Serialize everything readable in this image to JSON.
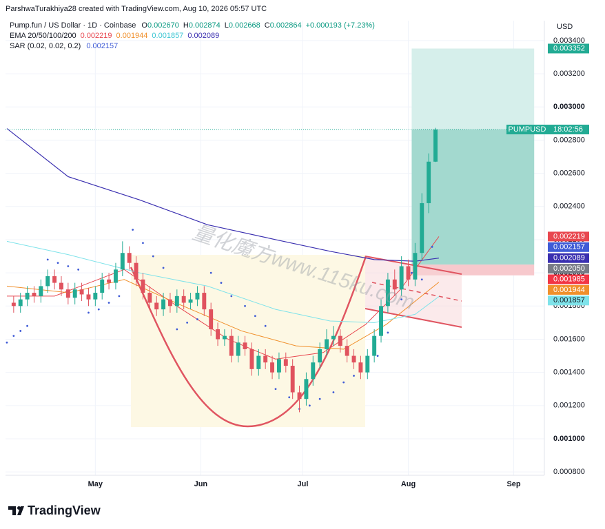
{
  "chart_data": {
    "type": "candlestick",
    "credit": "ParshwaTurakhiya28 created with TradingView.com, Aug 10, 2026 05:57 UTC",
    "symbol": "Pump.fun / US Dollar · 1D · Coinbase",
    "ohlc": [
      {
        "key": "O",
        "text": "0.002670"
      },
      {
        "key": "H",
        "text": "0.002874"
      },
      {
        "key": "L",
        "text": "0.002668"
      },
      {
        "key": "C",
        "text": "0.002864"
      }
    ],
    "change": "+0.000193 (+7.23%)",
    "ema_label": "EMA 20/50/100/200",
    "currency": "USD",
    "ticker": "PUMPUSD",
    "countdown": "18:02:56",
    "watermark": "量化魔方www.115ku.com",
    "logo": "TradingView",
    "up_color": "#22ab94",
    "down_color": "#e0525e",
    "grid": true,
    "xlim": [
      -26.4,
      132
    ],
    "xticks": [
      {
        "value": 0,
        "label": "May"
      },
      {
        "value": 31,
        "label": "Jun"
      },
      {
        "value": 61,
        "label": "Jul"
      },
      {
        "value": 92,
        "label": "Aug"
      },
      {
        "value": 123,
        "label": "Sep"
      }
    ],
    "ylim": [
      0.00078,
      0.00352
    ],
    "yticks": [
      {
        "value": 0.0008,
        "label": "0.000800"
      },
      {
        "value": 0.001,
        "label": "0.001000"
      },
      {
        "value": 0.0012,
        "label": "0.001200"
      },
      {
        "value": 0.0014,
        "label": "0.001400"
      },
      {
        "value": 0.0016,
        "label": "0.001600"
      },
      {
        "value": 0.0018,
        "label": "0.001800"
      },
      {
        "value": 0.002,
        "label": "0.002000"
      },
      {
        "value": 0.0022,
        "label": "0.002200"
      },
      {
        "value": 0.0024,
        "label": "0.002400"
      },
      {
        "value": 0.0026,
        "label": "0.002600"
      },
      {
        "value": 0.0028,
        "label": "0.002800"
      },
      {
        "value": 0.003,
        "label": "0.003000"
      },
      {
        "value": 0.0032,
        "label": "0.003200"
      },
      {
        "value": 0.0034,
        "label": "0.003400"
      }
    ],
    "candles": {
      "x": [
        -24,
        -22,
        -20,
        -18,
        -16,
        -14,
        -12,
        -10,
        -8,
        -6,
        -4,
        -2,
        0,
        2,
        4,
        6,
        8,
        10,
        12,
        14,
        16,
        18,
        20,
        22,
        24,
        26,
        28,
        30,
        32,
        34,
        36,
        38,
        40,
        42,
        44,
        46,
        48,
        50,
        52,
        54,
        56,
        58,
        60,
        62,
        64,
        66,
        68,
        70,
        72,
        74,
        76,
        78,
        80,
        82,
        84,
        86,
        88,
        90,
        92,
        94,
        96,
        98,
        100
      ],
      "open": [
        0.00182,
        0.0018,
        0.00184,
        0.00188,
        0.00186,
        0.00192,
        0.00198,
        0.00194,
        0.0019,
        0.00185,
        0.0019,
        0.00187,
        0.00184,
        0.00188,
        0.00196,
        0.00194,
        0.00202,
        0.00212,
        0.00206,
        0.00196,
        0.00188,
        0.00182,
        0.00178,
        0.00184,
        0.0018,
        0.00186,
        0.00182,
        0.00184,
        0.00188,
        0.00178,
        0.00166,
        0.0016,
        0.00162,
        0.0015,
        0.00158,
        0.00154,
        0.00142,
        0.0015,
        0.00146,
        0.0014,
        0.00148,
        0.00144,
        0.00128,
        0.00124,
        0.00136,
        0.00146,
        0.00154,
        0.0016,
        0.00162,
        0.00156,
        0.0015,
        0.00146,
        0.0014,
        0.0015,
        0.00162,
        0.0018,
        0.00196,
        0.0019,
        0.00204,
        0.00196,
        0.00212,
        0.00242,
        0.00267
      ],
      "high": [
        0.00186,
        0.00188,
        0.00192,
        0.00192,
        0.00196,
        0.00202,
        0.00202,
        0.00198,
        0.00194,
        0.00194,
        0.00194,
        0.00191,
        0.00192,
        0.002,
        0.002,
        0.00206,
        0.00219,
        0.00216,
        0.0021,
        0.002,
        0.00192,
        0.00186,
        0.00188,
        0.00188,
        0.0019,
        0.0019,
        0.00188,
        0.00192,
        0.00192,
        0.00182,
        0.0017,
        0.00166,
        0.00166,
        0.00162,
        0.00162,
        0.00158,
        0.00154,
        0.00154,
        0.0015,
        0.00152,
        0.00152,
        0.00148,
        0.00132,
        0.0014,
        0.0015,
        0.00158,
        0.00166,
        0.00168,
        0.00166,
        0.0016,
        0.00154,
        0.0015,
        0.00154,
        0.00166,
        0.00184,
        0.002,
        0.00202,
        0.0021,
        0.00208,
        0.00218,
        0.00248,
        0.00272,
        0.002874
      ],
      "low": [
        0.00176,
        0.00176,
        0.0018,
        0.00182,
        0.00182,
        0.00188,
        0.0019,
        0.00186,
        0.00181,
        0.00181,
        0.00183,
        0.0018,
        0.0018,
        0.00184,
        0.0019,
        0.0019,
        0.00198,
        0.00202,
        0.00192,
        0.00184,
        0.00178,
        0.00174,
        0.00174,
        0.00176,
        0.00176,
        0.00178,
        0.00178,
        0.0018,
        0.00174,
        0.00162,
        0.00156,
        0.00156,
        0.00146,
        0.00146,
        0.0015,
        0.00138,
        0.00138,
        0.00142,
        0.00136,
        0.00136,
        0.0014,
        0.00124,
        0.00116,
        0.0012,
        0.00132,
        0.00142,
        0.0015,
        0.00156,
        0.00152,
        0.00146,
        0.00142,
        0.00136,
        0.00136,
        0.00146,
        0.00158,
        0.00176,
        0.00186,
        0.00186,
        0.00192,
        0.00192,
        0.00208,
        0.00236,
        0.002668
      ],
      "close": [
        0.0018,
        0.00184,
        0.00188,
        0.00186,
        0.00192,
        0.00198,
        0.00194,
        0.0019,
        0.00185,
        0.0019,
        0.00187,
        0.00184,
        0.00188,
        0.00196,
        0.00194,
        0.00202,
        0.00212,
        0.00206,
        0.00196,
        0.00188,
        0.00182,
        0.00178,
        0.00184,
        0.0018,
        0.00186,
        0.00182,
        0.00184,
        0.00188,
        0.00178,
        0.00166,
        0.0016,
        0.00162,
        0.0015,
        0.00158,
        0.00154,
        0.00142,
        0.0015,
        0.00146,
        0.0014,
        0.00148,
        0.00144,
        0.00128,
        0.00124,
        0.00136,
        0.00146,
        0.00154,
        0.0016,
        0.00162,
        0.00156,
        0.0015,
        0.00146,
        0.0014,
        0.0015,
        0.00162,
        0.0018,
        0.00196,
        0.0019,
        0.00204,
        0.00196,
        0.00212,
        0.00242,
        0.00267,
        0.002864
      ]
    },
    "ema": [
      {
        "color": "#e8474f",
        "last": {
          "value": 0.002219,
          "label": "0.002219"
        },
        "x": [
          -26,
          -12,
          8.5,
          24.7,
          39,
          53,
          67,
          79.5,
          89.7,
          101
        ],
        "values": [
          0.00186,
          0.00186,
          0.00202,
          0.00179,
          0.0016,
          0.00148,
          0.00152,
          0.00169,
          0.0019,
          0.002219
        ]
      },
      {
        "color": "#f0902c",
        "last": {
          "value": 0.001944,
          "label": "0.001944"
        },
        "x": [
          -26,
          -7.7,
          8.5,
          24.7,
          43,
          59,
          73,
          85.6,
          101
        ],
        "values": [
          0.00192,
          0.00188,
          0.00196,
          0.00181,
          0.00165,
          0.00156,
          0.00154,
          0.00169,
          0.001944
        ]
      },
      {
        "color": "#7fe3ea",
        "last": {
          "value": 0.001857,
          "label": "0.001857"
        },
        "x": [
          -26,
          -8,
          13,
          33,
          53,
          69,
          82,
          94,
          101
        ],
        "values": [
          0.00219,
          0.00211,
          0.002,
          0.00192,
          0.00178,
          0.00171,
          0.0017,
          0.00175,
          0.001857
        ]
      },
      {
        "color": "#3a2fb0",
        "last": {
          "value": 0.002089,
          "label": "0.002089"
        },
        "x": [
          -26,
          -8,
          13,
          33,
          53,
          69,
          82,
          94,
          101
        ],
        "values": [
          0.00287,
          0.00258,
          0.00244,
          0.00229,
          0.0022,
          0.00213,
          0.00208,
          0.00207,
          0.002089
        ]
      }
    ],
    "sar": {
      "label": "SAR (0.02, 0.02, 0.2)",
      "color": "#3f5bd6",
      "last": {
        "value": 0.002157,
        "label": "0.002157"
      },
      "x": [
        -26,
        -24,
        -22,
        -20,
        -14,
        -11,
        -8,
        -5,
        -2,
        1,
        4,
        7,
        11,
        14,
        17,
        20,
        24,
        27,
        30,
        34,
        37,
        40,
        44,
        47,
        50,
        53,
        57,
        60,
        63,
        66,
        70,
        73,
        76,
        80,
        83,
        86,
        90,
        93,
        96,
        99
      ],
      "values": [
        0.00158,
        0.00162,
        0.00165,
        0.00168,
        0.00208,
        0.00206,
        0.00204,
        0.00202,
        0.00176,
        0.00178,
        0.00182,
        0.00186,
        0.00226,
        0.00218,
        0.0021,
        0.00203,
        0.00166,
        0.0017,
        0.00172,
        0.002,
        0.00194,
        0.00186,
        0.0018,
        0.00174,
        0.00168,
        0.0013,
        0.00125,
        0.00118,
        0.0012,
        0.00124,
        0.00128,
        0.00134,
        0.00138,
        0.00142,
        0.0015,
        0.00164,
        0.00184,
        0.002,
        0.00196,
        0.002157
      ]
    },
    "position": {
      "x": [
        93,
        129
      ],
      "target": {
        "value": 0.003352,
        "label": "0.003352"
      },
      "entry": {
        "value": 0.00205,
        "label": "0.002050"
      },
      "stop": {
        "value": 0.001985,
        "label": "0.001985"
      }
    }
  }
}
